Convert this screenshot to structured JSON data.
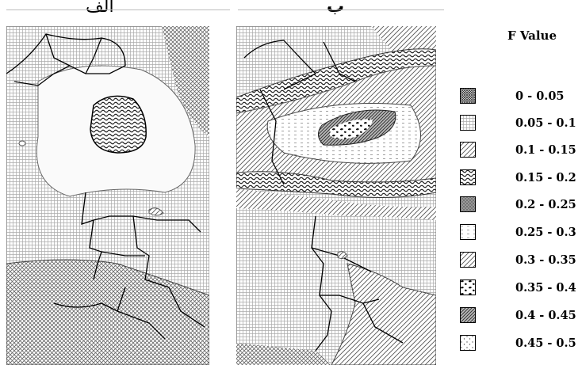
{
  "panels": {
    "left_label": "الف",
    "right_label": "ب"
  },
  "legend": {
    "title": "F Value",
    "items": [
      {
        "label": "0 - 0.05",
        "pattern": "crosshatch-dense"
      },
      {
        "label": "0.05 - 0.1",
        "pattern": "grid-light"
      },
      {
        "label": "0.1 - 0.15",
        "pattern": "diagonal-lines"
      },
      {
        "label": "0.15 - 0.2",
        "pattern": "wavy-dense"
      },
      {
        "label": "0.2 - 0.25",
        "pattern": "stipple-dark"
      },
      {
        "label": "0.25 - 0.3",
        "pattern": "dashes-light"
      },
      {
        "label": "0.3 - 0.35",
        "pattern": "diagonal-lines-medium"
      },
      {
        "label": "0.35 - 0.4",
        "pattern": "blobs-black"
      },
      {
        "label": "0.4 - 0.45",
        "pattern": "diagonal-lines-dark"
      },
      {
        "label": "0.45 - 0.5",
        "pattern": "dots-sparse"
      }
    ]
  },
  "colors": {
    "ink": "#000000",
    "gray": "#9a9a9a",
    "background": "#ffffff"
  }
}
